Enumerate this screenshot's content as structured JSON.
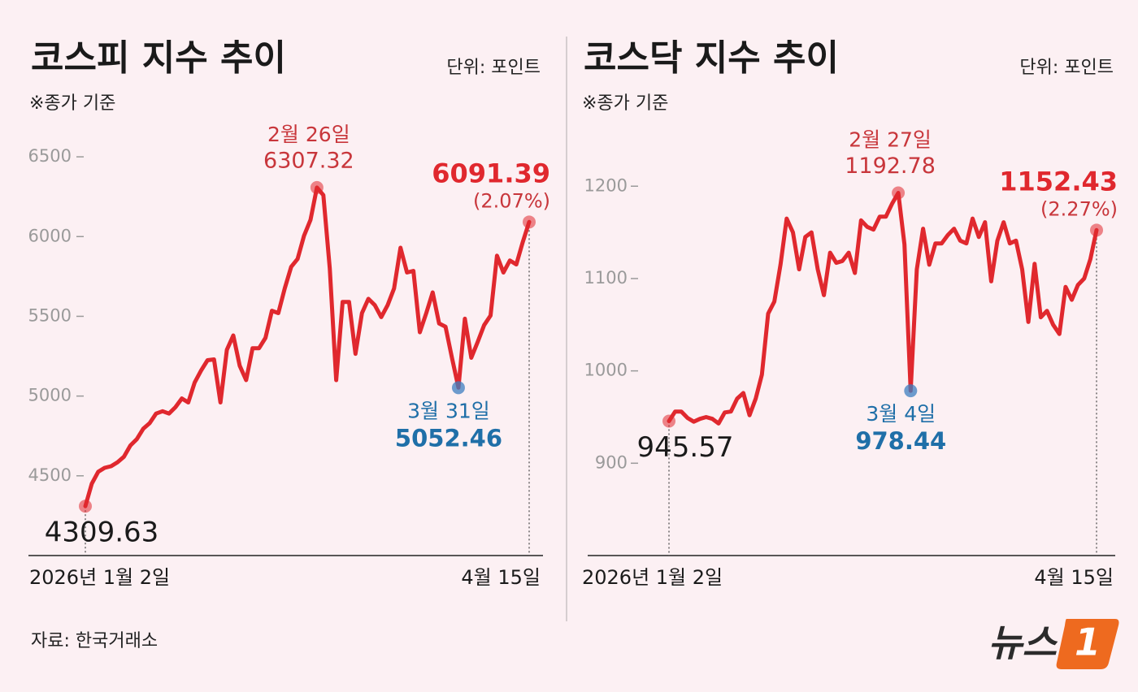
{
  "chart_data": [
    {
      "type": "line",
      "title": "코스피 지수 추이",
      "unit": "단위: 포인트",
      "note": "※종가 기준",
      "categories": [
        "2026년 1월 2일",
        null,
        null,
        null,
        null,
        null,
        null,
        null,
        null,
        null,
        null,
        null,
        null,
        null,
        null,
        null,
        null,
        null,
        null,
        null,
        null,
        null,
        null,
        null,
        null,
        null,
        null,
        null,
        null,
        null,
        null,
        null,
        null,
        null,
        null,
        null,
        "2월 26일",
        null,
        null,
        null,
        null,
        null,
        null,
        null,
        null,
        null,
        null,
        null,
        null,
        null,
        null,
        null,
        null,
        null,
        null,
        null,
        null,
        null,
        "3월 31일",
        null,
        null,
        null,
        null,
        null,
        null,
        null,
        null,
        null,
        null,
        "4월 15일"
      ],
      "series": [
        {
          "color": "#e0282e",
          "high_color": "#c8363b",
          "low_color": "#1f6fa8",
          "values": [
            4309.63,
            4450,
            4525,
            4550,
            4560,
            4585,
            4620,
            4690,
            4730,
            4795,
            4830,
            4890,
            4905,
            4890,
            4930,
            4985,
            4960,
            5085,
            5160,
            5225,
            5230,
            4960,
            5290,
            5380,
            5190,
            5100,
            5300,
            5300,
            5365,
            5535,
            5520,
            5675,
            5810,
            5860,
            6005,
            6105,
            6307.32,
            6260,
            5800,
            5100,
            5590,
            5590,
            5265,
            5520,
            5610,
            5570,
            5495,
            5570,
            5675,
            5930,
            5775,
            5785,
            5400,
            5520,
            5650,
            5455,
            5435,
            5240,
            5052.46,
            5485,
            5240,
            5340,
            5445,
            5505,
            5880,
            5775,
            5850,
            5825,
            5965,
            6091.39
          ]
        }
      ],
      "last_change": "(2.07%)",
      "ylim": [
        4000,
        6750
      ],
      "yticks": [
        4500,
        5000,
        5500,
        6000,
        6500
      ]
    },
    {
      "type": "line",
      "title": "코스닥 지수 추이",
      "unit": "단위: 포인트",
      "note": "※종가 기준",
      "categories": [
        "2026년 1월 2일",
        null,
        null,
        null,
        null,
        null,
        null,
        null,
        null,
        null,
        null,
        null,
        null,
        null,
        null,
        null,
        null,
        null,
        null,
        null,
        null,
        null,
        null,
        null,
        null,
        null,
        null,
        null,
        null,
        null,
        null,
        null,
        null,
        null,
        null,
        null,
        null,
        "2월 27일",
        null,
        "3월 4일",
        null,
        null,
        null,
        null,
        null,
        null,
        null,
        null,
        null,
        null,
        null,
        null,
        null,
        null,
        null,
        null,
        null,
        null,
        null,
        null,
        null,
        null,
        null,
        null,
        null,
        null,
        null,
        null,
        null,
        "4월 15일"
      ],
      "series": [
        {
          "color": "#e0282e",
          "high_color": "#c8363b",
          "low_color": "#1f6fa8",
          "values": [
            945.57,
            956,
            956,
            949,
            945,
            948,
            950,
            948,
            943,
            955,
            956,
            970,
            976,
            952,
            970,
            996,
            1062,
            1075,
            1115,
            1165,
            1150,
            1110,
            1145,
            1150,
            1110,
            1082,
            1128,
            1117,
            1119,
            1128,
            1106,
            1163,
            1156,
            1153,
            1167,
            1167,
            1181,
            1192.78,
            1137,
            978.44,
            1110,
            1154,
            1115,
            1138,
            1138,
            1147,
            1154,
            1141,
            1138,
            1165,
            1145,
            1161,
            1097,
            1141,
            1161,
            1138,
            1141,
            1110,
            1053,
            1116,
            1058,
            1065,
            1050,
            1040,
            1091,
            1077,
            1093,
            1100,
            1121,
            1152.43
          ]
        }
      ],
      "last_change": "(2.27%)",
      "ylim": [
        800,
        1275
      ],
      "yticks": [
        900,
        1000,
        1100,
        1200
      ]
    }
  ],
  "source": "자료: 한국거래소",
  "logo": {
    "text": "뉴스",
    "mark": "1"
  }
}
